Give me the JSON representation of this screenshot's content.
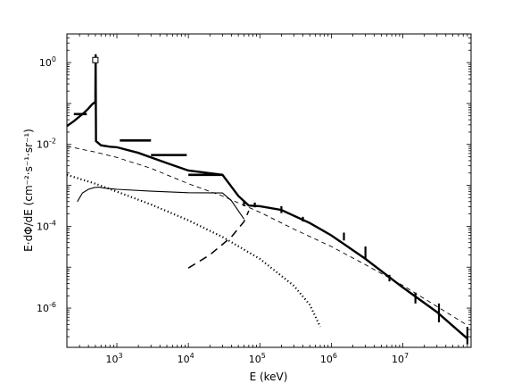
{
  "chart_data": {
    "type": "line",
    "xlabel": "E (keV)",
    "ylabel": "E·dΦ/dE (cm⁻²·s⁻¹·sr⁻¹)",
    "x_scale": "log",
    "y_scale": "log",
    "xlim": [
      200,
      90000000
    ],
    "ylim": [
      1.1e-07,
      5
    ],
    "x_ticks": [
      {
        "value": 1000,
        "base": "10",
        "exp": "3"
      },
      {
        "value": 10000,
        "base": "10",
        "exp": "4"
      },
      {
        "value": 100000,
        "base": "10",
        "exp": "5"
      },
      {
        "value": 1000000,
        "base": "10",
        "exp": "6"
      },
      {
        "value": 10000000,
        "base": "10",
        "exp": "7"
      }
    ],
    "y_ticks": [
      {
        "value": 1,
        "base": "10",
        "exp": "0"
      },
      {
        "value": 0.01,
        "base": "10",
        "exp": "-2"
      },
      {
        "value": 0.0001,
        "base": "10",
        "exp": "-4"
      },
      {
        "value": 1e-06,
        "base": "10",
        "exp": "-6"
      }
    ],
    "series": [
      {
        "style": "thick",
        "points": [
          [
            200,
            0.028
          ],
          [
            250,
            0.037
          ],
          [
            300,
            0.048
          ],
          [
            350,
            0.06
          ],
          [
            400,
            0.075
          ],
          [
            450,
            0.095
          ],
          [
            500,
            0.11
          ],
          [
            505,
            1.6
          ],
          [
            510,
            0.012
          ],
          [
            600,
            0.0095
          ],
          [
            800,
            0.0088
          ],
          [
            1000,
            0.0085
          ],
          [
            2000,
            0.0062
          ],
          [
            5000,
            0.0035
          ],
          [
            10000,
            0.0023
          ],
          [
            30000,
            0.0018
          ],
          [
            50000,
            0.00055
          ],
          [
            70000,
            0.00032
          ],
          [
            100000,
            0.00031
          ],
          [
            200000,
            0.00025
          ],
          [
            500000,
            0.00012
          ],
          [
            1000000,
            6e-05
          ],
          [
            3000000,
            1.6e-05
          ],
          [
            10000000,
            3.2e-06
          ],
          [
            30000000,
            8e-07
          ],
          [
            80000000,
            1.8e-07
          ]
        ]
      },
      {
        "style": "thin",
        "points": [
          [
            280,
            0.0004
          ],
          [
            330,
            0.00065
          ],
          [
            400,
            0.0008
          ],
          [
            480,
            0.00088
          ],
          [
            550,
            0.0009
          ],
          [
            700,
            0.00085
          ],
          [
            1000,
            0.0008
          ],
          [
            3000,
            0.00072
          ],
          [
            10000,
            0.00066
          ],
          [
            30000,
            0.00065
          ],
          [
            40000,
            0.00042
          ],
          [
            60000,
            0.00015
          ]
        ]
      },
      {
        "style": "dashed",
        "points": [
          [
            200,
            0.009
          ],
          [
            500,
            0.0065
          ],
          [
            1000,
            0.0048
          ],
          [
            3000,
            0.0026
          ],
          [
            10000,
            0.0011
          ],
          [
            30000,
            0.00055
          ],
          [
            100000,
            0.00022
          ],
          [
            300000,
            8.5e-05
          ],
          [
            1000000,
            3.2e-05
          ],
          [
            3000000,
            1.15e-05
          ],
          [
            10000000,
            3.6e-06
          ],
          [
            30000000,
            1.1e-06
          ],
          [
            80000000,
            3.8e-07
          ]
        ]
      },
      {
        "style": "long-dashed",
        "points": [
          [
            10000,
            9.5e-06
          ],
          [
            20000,
            2e-05
          ],
          [
            40000,
            5.5e-05
          ],
          [
            60000,
            0.00013
          ],
          [
            70000,
            0.00024
          ]
        ]
      },
      {
        "style": "dotted",
        "points": [
          [
            200,
            0.0018
          ],
          [
            500,
            0.0011
          ],
          [
            1000,
            0.0007
          ],
          [
            3000,
            0.00034
          ],
          [
            10000,
            0.00014
          ],
          [
            30000,
            5.5e-05
          ],
          [
            100000,
            1.6e-05
          ],
          [
            300000,
            3.5e-06
          ],
          [
            500000,
            1.2e-06
          ],
          [
            700000,
            3.5e-07
          ]
        ]
      }
    ],
    "open_marker": [
      [
        500,
        1.15
      ]
    ],
    "horizontal_bars": [
      {
        "x0": 250,
        "x1": 380,
        "y": 0.055
      },
      {
        "x0": 1100,
        "x1": 3000,
        "y": 0.0125
      },
      {
        "x0": 3000,
        "x1": 9500,
        "y": 0.0055
      },
      {
        "x0": 10000,
        "x1": 30000,
        "y": 0.0018
      }
    ],
    "error_bars": [
      {
        "x": 60000,
        "lo": 0.00031,
        "hi": 0.00043
      },
      {
        "x": 85000,
        "lo": 0.00029,
        "hi": 0.00038
      },
      {
        "x": 200000,
        "lo": 0.00021,
        "hi": 0.00031
      },
      {
        "x": 400000,
        "lo": 0.00013,
        "hi": 0.00017
      },
      {
        "x": 1500000,
        "lo": 4.5e-05,
        "hi": 7e-05
      },
      {
        "x": 3000000,
        "lo": 1.6e-05,
        "hi": 3.2e-05
      },
      {
        "x": 6500000,
        "lo": 4.5e-06,
        "hi": 6.5e-06
      },
      {
        "x": 15000000,
        "lo": 1.3e-06,
        "hi": 2.4e-06
      },
      {
        "x": 32000000,
        "lo": 4.5e-07,
        "hi": 1.3e-06
      },
      {
        "x": 80000000,
        "lo": 1.3e-07,
        "hi": 3.5e-07
      }
    ]
  }
}
